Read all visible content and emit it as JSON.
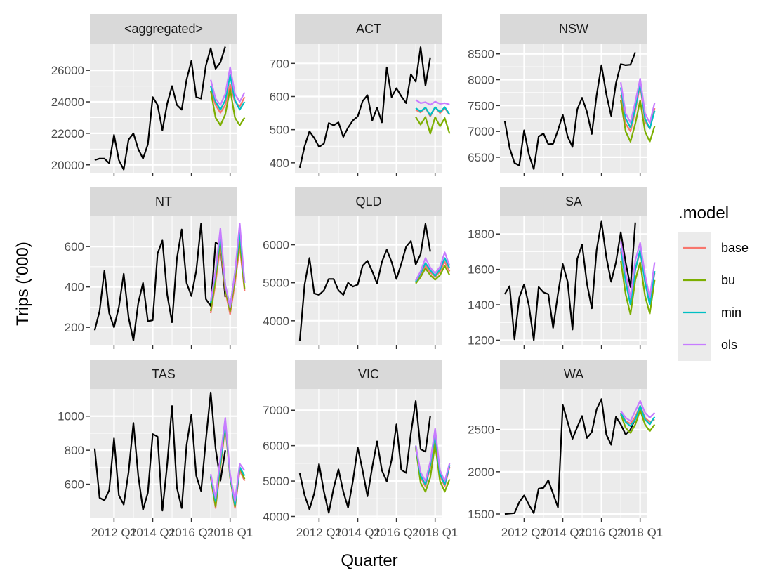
{
  "figure": {
    "xlabel": "Quarter",
    "ylabel": "Trips ('000)",
    "x_ticks": [
      2012,
      2014,
      2016,
      2018
    ],
    "x_tick_suffix": " Q1",
    "legend_title": ".model",
    "legend": [
      {
        "name": "base",
        "color": "#F8766D"
      },
      {
        "name": "bu",
        "color": "#7CAE00"
      },
      {
        "name": "min",
        "color": "#00BFC4"
      },
      {
        "name": "ols",
        "color": "#C77CFF"
      }
    ],
    "history_color": "#000000"
  },
  "chart_data": [
    {
      "type": "line",
      "title": "<aggregated>",
      "ylim": [
        19500,
        27700
      ],
      "yticks": [
        20000,
        22000,
        24000,
        26000
      ],
      "history": {
        "start": [
          2011,
          1
        ],
        "values": [
          20300,
          20400,
          20400,
          20100,
          21900,
          20300,
          19700,
          21600,
          22000,
          21000,
          20400,
          21300,
          24300,
          23800,
          22200,
          23900,
          25000,
          23800,
          23500,
          25400,
          26600,
          24300,
          24200,
          26300,
          27400,
          26100,
          26500,
          27500
        ]
      },
      "forecast": {
        "start": [
          2017,
          1
        ],
        "series": [
          {
            "name": "base",
            "values": [
              24700,
              23800,
              23300,
              23800,
              25100,
              24000,
              23700,
              24300
            ]
          },
          {
            "name": "bu",
            "values": [
              24700,
              23000,
              22500,
              23200,
              24800,
              23000,
              22500,
              23000
            ]
          },
          {
            "name": "min",
            "values": [
              25000,
              24000,
              23500,
              24100,
              25700,
              24100,
              23500,
              24000
            ]
          },
          {
            "name": "ols",
            "values": [
              25400,
              24200,
              23800,
              24500,
              26200,
              24500,
              24000,
              24600
            ]
          }
        ]
      }
    },
    {
      "type": "line",
      "title": "ACT",
      "ylim": [
        370,
        760
      ],
      "yticks": [
        400,
        500,
        600,
        700
      ],
      "history": {
        "start": [
          2011,
          1
        ],
        "values": [
          385,
          450,
          495,
          475,
          448,
          458,
          520,
          513,
          522,
          478,
          506,
          528,
          540,
          586,
          604,
          528,
          566,
          522,
          688,
          598,
          625,
          601,
          580,
          667,
          645,
          749,
          633,
          718
        ]
      },
      "forecast": {
        "start": [
          2017,
          1
        ],
        "series": [
          {
            "name": "base",
            "values": [
              560,
              552,
              566,
              540,
              568,
              550,
              565,
              545
            ]
          },
          {
            "name": "bu",
            "values": [
              538,
              515,
              538,
              488,
              538,
              510,
              535,
              488
            ]
          },
          {
            "name": "min",
            "values": [
              565,
              555,
              567,
              543,
              568,
              553,
              568,
              546
            ]
          },
          {
            "name": "ols",
            "values": [
              590,
              580,
              583,
              575,
              585,
              578,
              580,
              576
            ]
          }
        ]
      }
    },
    {
      "type": "line",
      "title": "NSW",
      "ylim": [
        6200,
        8700
      ],
      "yticks": [
        6500,
        7000,
        7500,
        8000,
        8500
      ],
      "history": {
        "start": [
          2011,
          1
        ],
        "values": [
          7200,
          6680,
          6390,
          6340,
          7020,
          6550,
          6270,
          6900,
          6960,
          6750,
          6760,
          7020,
          7320,
          6900,
          6700,
          7430,
          7650,
          7380,
          6950,
          7700,
          8280,
          7720,
          7300,
          7930,
          8300,
          8280,
          8290,
          8530
        ]
      },
      "forecast": {
        "start": [
          2017,
          1
        ],
        "series": [
          {
            "name": "base",
            "values": [
              7700,
              7150,
              7000,
              7400,
              7900,
              7200,
              7050,
              7450
            ]
          },
          {
            "name": "bu",
            "values": [
              7600,
              7000,
              6800,
              7150,
              7600,
              7000,
              6800,
              7100
            ]
          },
          {
            "name": "min",
            "values": [
              7850,
              7250,
              7070,
              7450,
              7950,
              7250,
              7050,
              7400
            ]
          },
          {
            "name": "ols",
            "values": [
              7950,
              7350,
              7170,
              7570,
              8020,
              7350,
              7160,
              7550
            ]
          }
        ]
      }
    },
    {
      "type": "line",
      "title": "NT",
      "ylim": [
        110,
        750
      ],
      "yticks": [
        200,
        400,
        600
      ],
      "history": {
        "start": [
          2011,
          1
        ],
        "values": [
          185,
          280,
          480,
          270,
          200,
          300,
          465,
          250,
          135,
          320,
          420,
          230,
          235,
          565,
          630,
          360,
          225,
          540,
          685,
          420,
          355,
          480,
          715,
          340,
          305,
          620,
          605,
          350
        ]
      },
      "forecast": {
        "start": [
          2017,
          1
        ],
        "series": [
          {
            "name": "base",
            "values": [
              270,
              420,
              610,
              380,
              265,
              420,
              600,
              380
            ]
          },
          {
            "name": "bu",
            "values": [
              280,
              440,
              640,
              390,
              280,
              440,
              630,
              390
            ]
          },
          {
            "name": "min",
            "values": [
              320,
              470,
              660,
              410,
              300,
              470,
              670,
              420
            ]
          },
          {
            "name": "ols",
            "values": [
              330,
              480,
              690,
              410,
              300,
              470,
              715,
              420
            ]
          }
        ]
      }
    },
    {
      "type": "line",
      "title": "QLD",
      "ylim": [
        3350,
        6750
      ],
      "yticks": [
        4000,
        5000,
        6000
      ],
      "history": {
        "start": [
          2011,
          1
        ],
        "values": [
          3470,
          4950,
          5650,
          4720,
          4680,
          4800,
          5100,
          5100,
          4800,
          4680,
          5000,
          4900,
          4950,
          5450,
          5580,
          5300,
          4980,
          5550,
          5870,
          5550,
          5100,
          5500,
          5950,
          6100,
          5480,
          5750,
          6550,
          5820
        ]
      },
      "forecast": {
        "start": [
          2017,
          1
        ],
        "series": [
          {
            "name": "base",
            "values": [
              5000,
              5200,
              5450,
              5280,
              5150,
              5300,
              5550,
              5300
            ]
          },
          {
            "name": "bu",
            "values": [
              4980,
              5150,
              5380,
              5200,
              5080,
              5200,
              5450,
              5200
            ]
          },
          {
            "name": "min",
            "values": [
              5030,
              5250,
              5520,
              5330,
              5180,
              5350,
              5650,
              5380
            ]
          },
          {
            "name": "ols",
            "values": [
              5060,
              5300,
              5650,
              5400,
              5250,
              5420,
              5800,
              5450
            ]
          }
        ]
      }
    },
    {
      "type": "line",
      "title": "SA",
      "ylim": [
        1170,
        1900
      ],
      "yticks": [
        1200,
        1400,
        1600,
        1800
      ],
      "history": {
        "start": [
          2011,
          1
        ],
        "values": [
          1460,
          1505,
          1205,
          1440,
          1515,
          1395,
          1200,
          1500,
          1470,
          1460,
          1270,
          1460,
          1630,
          1530,
          1260,
          1660,
          1740,
          1520,
          1380,
          1710,
          1870,
          1670,
          1530,
          1640,
          1810,
          1640,
          1500,
          1865
        ]
      },
      "forecast": {
        "start": [
          2017,
          1
        ],
        "series": [
          {
            "name": "base",
            "values": [
              1700,
              1550,
              1420,
              1600,
              1700,
              1540,
              1420,
              1580
            ]
          },
          {
            "name": "bu",
            "values": [
              1650,
              1460,
              1345,
              1540,
              1640,
              1450,
              1350,
              1540
            ]
          },
          {
            "name": "min",
            "values": [
              1720,
              1530,
              1400,
              1600,
              1710,
              1530,
              1400,
              1590
            ]
          },
          {
            "name": "ols",
            "values": [
              1760,
              1580,
              1440,
              1650,
              1750,
              1570,
              1440,
              1640
            ]
          }
        ]
      }
    },
    {
      "type": "line",
      "title": "TAS",
      "ylim": [
        400,
        1160
      ],
      "yticks": [
        600,
        800,
        1000
      ],
      "history": {
        "start": [
          2011,
          1
        ],
        "values": [
          810,
          520,
          505,
          565,
          870,
          535,
          480,
          670,
          960,
          650,
          450,
          550,
          895,
          880,
          445,
          720,
          1060,
          580,
          460,
          830,
          1010,
          650,
          560,
          860,
          1140,
          810,
          620,
          800
        ]
      },
      "forecast": {
        "start": [
          2017,
          1
        ],
        "series": [
          {
            "name": "base",
            "values": [
              640,
              460,
              700,
              940,
              640,
              460,
              680,
              620
            ]
          },
          {
            "name": "bu",
            "values": [
              640,
              470,
              710,
              960,
              640,
              470,
              700,
              630
            ]
          },
          {
            "name": "min",
            "values": [
              650,
              500,
              730,
              970,
              650,
              480,
              700,
              650
            ]
          },
          {
            "name": "ols",
            "values": [
              660,
              520,
              760,
              990,
              660,
              500,
              720,
              680
            ]
          }
        ]
      }
    },
    {
      "type": "line",
      "title": "VIC",
      "ylim": [
        3950,
        7600
      ],
      "yticks": [
        4000,
        5000,
        6000,
        7000
      ],
      "history": {
        "start": [
          2011,
          1
        ],
        "values": [
          5220,
          4600,
          4200,
          4650,
          5480,
          4700,
          4100,
          4800,
          5330,
          4700,
          4250,
          5000,
          5950,
          5300,
          4570,
          5400,
          6120,
          5300,
          4990,
          5600,
          6600,
          5320,
          5230,
          6350,
          7260,
          5900,
          5830,
          6840
        ]
      },
      "forecast": {
        "start": [
          2017,
          1
        ],
        "series": [
          {
            "name": "base",
            "values": [
              6000,
              5100,
              4850,
              5400,
              6300,
              5150,
              4850,
              5400
            ]
          },
          {
            "name": "bu",
            "values": [
              5950,
              4950,
              4700,
              5100,
              6050,
              5000,
              4700,
              5050
            ]
          },
          {
            "name": "min",
            "values": [
              6000,
              5150,
              4900,
              5450,
              6350,
              5200,
              4900,
              5450
            ]
          },
          {
            "name": "ols",
            "values": [
              6000,
              5250,
              5000,
              5550,
              6480,
              5300,
              5000,
              5500
            ]
          }
        ]
      }
    },
    {
      "type": "line",
      "title": "WA",
      "ylim": [
        1450,
        2980
      ],
      "yticks": [
        1500,
        2000,
        2500
      ],
      "history": {
        "start": [
          2011,
          1
        ],
        "values": [
          1500,
          1505,
          1510,
          1640,
          1720,
          1610,
          1510,
          1800,
          1810,
          1900,
          1740,
          1580,
          2790,
          2590,
          2390,
          2530,
          2660,
          2400,
          2470,
          2740,
          2860,
          2440,
          2320,
          2650,
          2560,
          2440,
          2500,
          2630
        ]
      },
      "forecast": {
        "start": [
          2017,
          1
        ],
        "series": [
          {
            "name": "base",
            "values": [
              2700,
              2600,
              2570,
              2650,
              2780,
              2640,
              2590,
              2620
            ]
          },
          {
            "name": "bu",
            "values": [
              2680,
              2520,
              2460,
              2560,
              2730,
              2560,
              2480,
              2560
            ]
          },
          {
            "name": "min",
            "values": [
              2700,
              2590,
              2540,
              2620,
              2780,
              2620,
              2560,
              2650
            ]
          },
          {
            "name": "ols",
            "values": [
              2720,
              2640,
              2600,
              2720,
              2840,
              2700,
              2640,
              2700
            ]
          }
        ]
      }
    }
  ]
}
